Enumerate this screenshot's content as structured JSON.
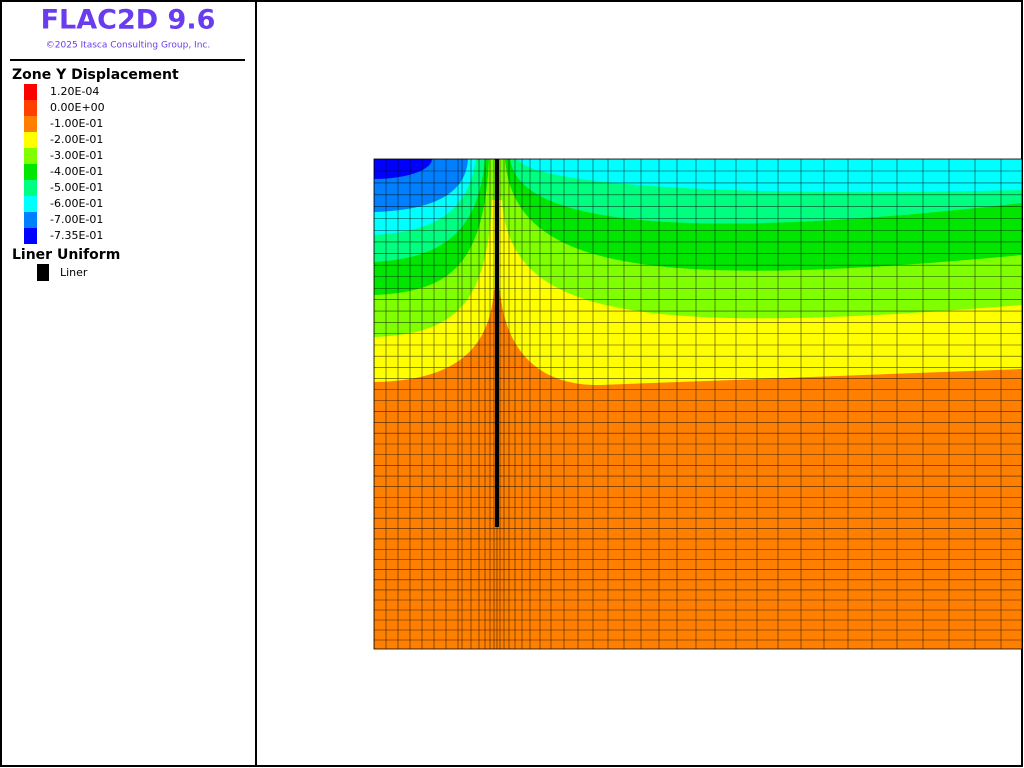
{
  "header": {
    "title": "FLAC2D 9.6",
    "copyright": "©2025 Itasca Consulting Group, Inc."
  },
  "legend": {
    "title": "Zone Y Displacement",
    "items": [
      {
        "label": "1.20E-04",
        "color": "#ff0000"
      },
      {
        "label": "0.00E+00",
        "color": "#ff4000"
      },
      {
        "label": "-1.00E-01",
        "color": "#ff8000"
      },
      {
        "label": "-2.00E-01",
        "color": "#ffff00"
      },
      {
        "label": "-3.00E-01",
        "color": "#80ff00"
      },
      {
        "label": "-4.00E-01",
        "color": "#00e600"
      },
      {
        "label": "-5.00E-01",
        "color": "#00ff80"
      },
      {
        "label": "-6.00E-01",
        "color": "#00ffff"
      },
      {
        "label": "-7.00E-01",
        "color": "#0080ff"
      },
      {
        "label": "-7.35E-01",
        "color": "#0000ff"
      }
    ]
  },
  "liner_legend": {
    "title": "Liner Uniform",
    "label": "Liner"
  }
}
